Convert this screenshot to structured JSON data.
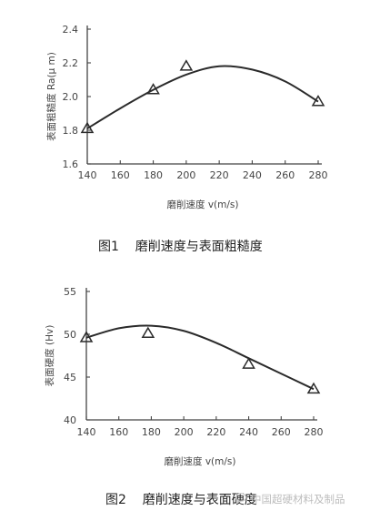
{
  "figures": [
    {
      "caption": "图1    磨削速度与表面粗糙度",
      "xlabel": "磨削速度 v(m/s)",
      "ylabel": "表面粗糙度 Ra(μ m)",
      "xticks": [
        "140",
        "160",
        "180",
        "200",
        "220",
        "240",
        "260",
        "280"
      ],
      "yticks": [
        "1.6",
        "1.8",
        "2.0",
        "2.2",
        "2.4"
      ]
    },
    {
      "caption": "图2    磨削速度与表面硬度",
      "xlabel": "磨削速度 v(m/s)",
      "ylabel": "表面硬度 (Hv)",
      "xticks": [
        "140",
        "160",
        "180",
        "200",
        "220",
        "240",
        "260",
        "280"
      ],
      "yticks": [
        "40",
        "45",
        "50",
        "55"
      ]
    }
  ],
  "watermark": "中国超硬材料及制品",
  "chart_data": [
    {
      "type": "scatter",
      "title": "",
      "xlabel": "磨削速度 v(m/s)",
      "ylabel": "表面粗糙度 Ra(μ m)",
      "xlim": [
        140,
        280
      ],
      "ylim": [
        1.6,
        2.4
      ],
      "grid": false,
      "markers": {
        "x": [
          140,
          180,
          200,
          280
        ],
        "y": [
          1.81,
          2.04,
          2.18,
          1.97
        ],
        "shape": "triangle"
      },
      "fit_curve": {
        "x": [
          140,
          160,
          180,
          200,
          220,
          240,
          260,
          280
        ],
        "y": [
          1.81,
          1.93,
          2.04,
          2.13,
          2.18,
          2.16,
          2.09,
          1.97
        ]
      }
    },
    {
      "type": "scatter",
      "title": "",
      "xlabel": "磨削速度 v(m/s)",
      "ylabel": "表面硬度 (Hv)",
      "xlim": [
        140,
        280
      ],
      "ylim": [
        40,
        55
      ],
      "grid": false,
      "markers": {
        "x": [
          140,
          178,
          240,
          280
        ],
        "y": [
          49.6,
          50.1,
          46.5,
          43.6
        ],
        "shape": "triangle"
      },
      "fit_curve": {
        "x": [
          140,
          160,
          180,
          200,
          220,
          240,
          260,
          280
        ],
        "y": [
          49.6,
          50.7,
          51.0,
          50.4,
          49.0,
          47.2,
          45.4,
          43.6
        ]
      }
    }
  ]
}
